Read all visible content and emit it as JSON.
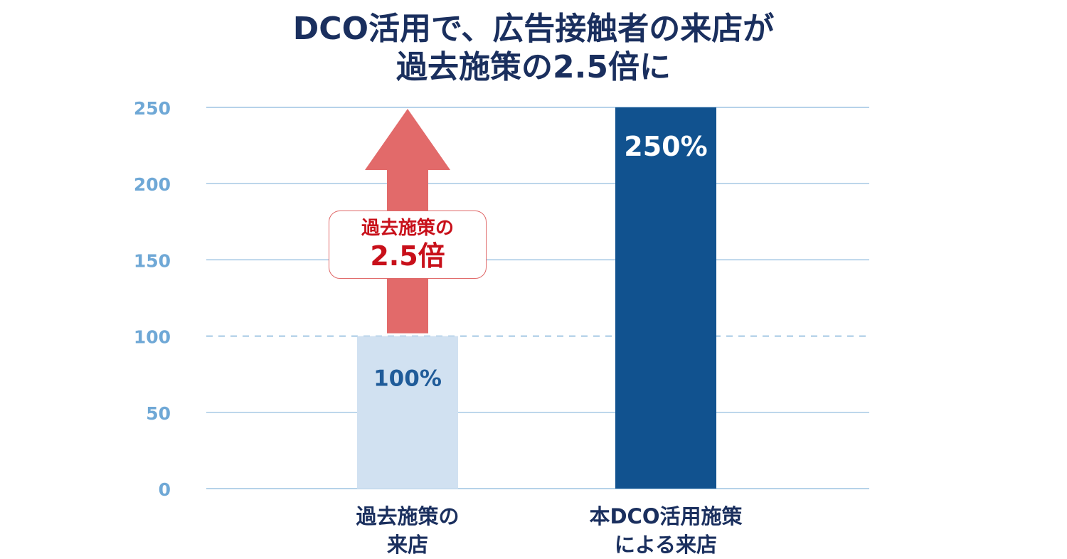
{
  "title": {
    "line1": "DCO活用で、広告接触者の来店が",
    "line2": "過去施策の2.5倍に"
  },
  "callout": {
    "line1": "過去施策の",
    "line2": "2.5倍"
  },
  "colors": {
    "title": "#1a2f5e",
    "tick": "#6fa8d6",
    "grid": "#8ab8dc",
    "bar_past": "#d1e1f1",
    "bar_dco": "#11528f",
    "label_past": "#1f5b99",
    "label_dco": "#ffffff",
    "arrow": "#e26a6a",
    "callout_text": "#c8101a"
  },
  "chart_data": {
    "type": "bar",
    "title": "DCO活用で、広告接触者の来店が過去施策の2.5倍に",
    "categories": [
      [
        "過去施策の",
        "来店"
      ],
      [
        "本DCO活用施策",
        "による来店"
      ]
    ],
    "values": [
      100,
      250
    ],
    "data_labels": [
      "100%",
      "250%"
    ],
    "ylim": [
      0,
      250
    ],
    "yticks": [
      0,
      50,
      100,
      150,
      200,
      250
    ],
    "grid": true,
    "reference_line": 100,
    "annotation": "過去施策の 2.5倍"
  }
}
